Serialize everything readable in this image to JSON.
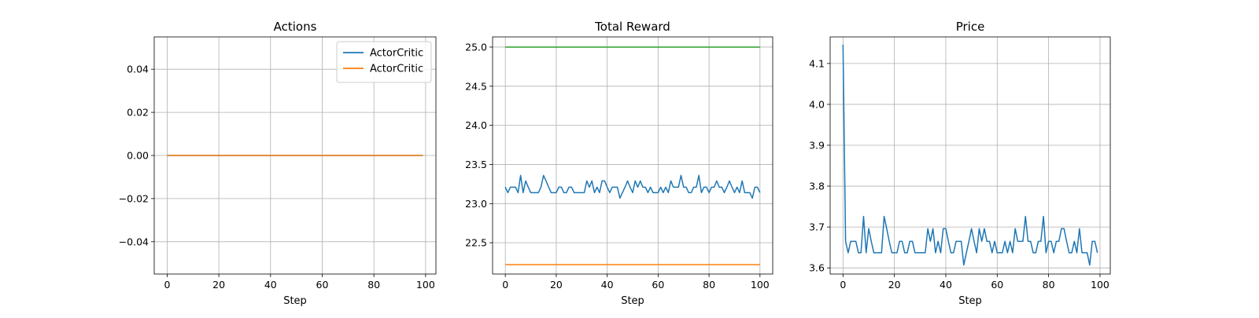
{
  "colors": {
    "c0": "#1f77b4",
    "c1": "#ff7f0e",
    "c2": "#2ca02c",
    "grid": "#b0b0b0"
  },
  "chart_data": [
    {
      "type": "line",
      "title": "Actions",
      "xlabel": "Step",
      "ylabel": "",
      "xlim": [
        -5,
        104
      ],
      "ylim": [
        -0.055,
        0.055
      ],
      "xticks": [
        0,
        20,
        40,
        60,
        80,
        100
      ],
      "yticks": [
        -0.04,
        -0.02,
        0.0,
        0.02,
        0.04
      ],
      "ytick_labels": [
        "−0.04",
        "−0.02",
        "0.00",
        "0.02",
        "0.04"
      ],
      "grid": true,
      "legend": {
        "placement": "upper-right"
      },
      "series": [
        {
          "name": "ActorCritic",
          "color": "#1f77b4",
          "x_range": [
            0,
            99
          ],
          "constant": 0.0
        },
        {
          "name": "ActorCritic",
          "color": "#ff7f0e",
          "x_range": [
            0,
            99
          ],
          "constant": 0.0
        }
      ]
    },
    {
      "type": "line",
      "title": "Total Reward",
      "xlabel": "Step",
      "ylabel": "",
      "xlim": [
        -5,
        105
      ],
      "ylim": [
        22.1,
        25.13
      ],
      "xticks": [
        0,
        20,
        40,
        60,
        80,
        100
      ],
      "yticks": [
        22.5,
        23.0,
        23.5,
        24.0,
        24.5,
        25.0
      ],
      "ytick_labels": [
        "22.5",
        "23.0",
        "23.5",
        "24.0",
        "24.5",
        "25.0"
      ],
      "grid": true,
      "series": [
        {
          "color": "#2ca02c",
          "x_range": [
            0,
            100
          ],
          "constant": 25.0
        },
        {
          "color": "#ff7f0e",
          "x_range": [
            0,
            100
          ],
          "constant": 22.22
        },
        {
          "color": "#1f77b4",
          "x_start": 0,
          "values": [
            23.21,
            23.14,
            23.21,
            23.21,
            23.21,
            23.14,
            23.36,
            23.14,
            23.29,
            23.21,
            23.14,
            23.14,
            23.14,
            23.14,
            23.21,
            23.36,
            23.29,
            23.21,
            23.14,
            23.14,
            23.14,
            23.21,
            23.21,
            23.14,
            23.14,
            23.21,
            23.21,
            23.14,
            23.14,
            23.14,
            23.14,
            23.14,
            23.29,
            23.21,
            23.29,
            23.14,
            23.21,
            23.14,
            23.29,
            23.29,
            23.21,
            23.14,
            23.21,
            23.21,
            23.21,
            23.07,
            23.14,
            23.21,
            23.29,
            23.21,
            23.14,
            23.29,
            23.21,
            23.29,
            23.21,
            23.21,
            23.14,
            23.21,
            23.14,
            23.14,
            23.14,
            23.21,
            23.14,
            23.21,
            23.14,
            23.29,
            23.21,
            23.21,
            23.21,
            23.36,
            23.21,
            23.21,
            23.14,
            23.14,
            23.21,
            23.21,
            23.36,
            23.14,
            23.21,
            23.21,
            23.14,
            23.21,
            23.21,
            23.29,
            23.21,
            23.21,
            23.14,
            23.21,
            23.29,
            23.21,
            23.14,
            23.21,
            23.14,
            23.29,
            23.14,
            23.14,
            23.14,
            23.07,
            23.21,
            23.21,
            23.14
          ]
        }
      ]
    },
    {
      "type": "line",
      "title": "Price",
      "xlabel": "Step",
      "ylabel": "",
      "xlim": [
        -5,
        104
      ],
      "ylim": [
        3.585,
        4.165
      ],
      "xticks": [
        0,
        20,
        40,
        60,
        80,
        100
      ],
      "yticks": [
        3.6,
        3.7,
        3.8,
        3.9,
        4.0,
        4.1
      ],
      "ytick_labels": [
        "3.6",
        "3.7",
        "3.8",
        "3.9",
        "4.0",
        "4.1"
      ],
      "grid": true,
      "series": [
        {
          "color": "#1f77b4",
          "x_start": 0,
          "values": [
            4.146,
            3.665,
            3.637,
            3.665,
            3.665,
            3.665,
            3.637,
            3.637,
            3.726,
            3.637,
            3.696,
            3.665,
            3.637,
            3.637,
            3.637,
            3.637,
            3.726,
            3.696,
            3.665,
            3.637,
            3.637,
            3.637,
            3.665,
            3.665,
            3.637,
            3.637,
            3.665,
            3.665,
            3.637,
            3.637,
            3.637,
            3.637,
            3.637,
            3.696,
            3.665,
            3.696,
            3.637,
            3.665,
            3.637,
            3.696,
            3.696,
            3.665,
            3.637,
            3.637,
            3.665,
            3.665,
            3.665,
            3.607,
            3.637,
            3.665,
            3.696,
            3.665,
            3.637,
            3.696,
            3.665,
            3.696,
            3.665,
            3.665,
            3.637,
            3.665,
            3.637,
            3.637,
            3.637,
            3.665,
            3.637,
            3.665,
            3.637,
            3.696,
            3.665,
            3.665,
            3.665,
            3.726,
            3.665,
            3.665,
            3.637,
            3.637,
            3.665,
            3.665,
            3.726,
            3.637,
            3.665,
            3.665,
            3.637,
            3.665,
            3.665,
            3.696,
            3.696,
            3.665,
            3.637,
            3.637,
            3.665,
            3.637,
            3.696,
            3.637,
            3.637,
            3.637,
            3.607,
            3.665,
            3.665,
            3.637
          ]
        }
      ]
    }
  ]
}
